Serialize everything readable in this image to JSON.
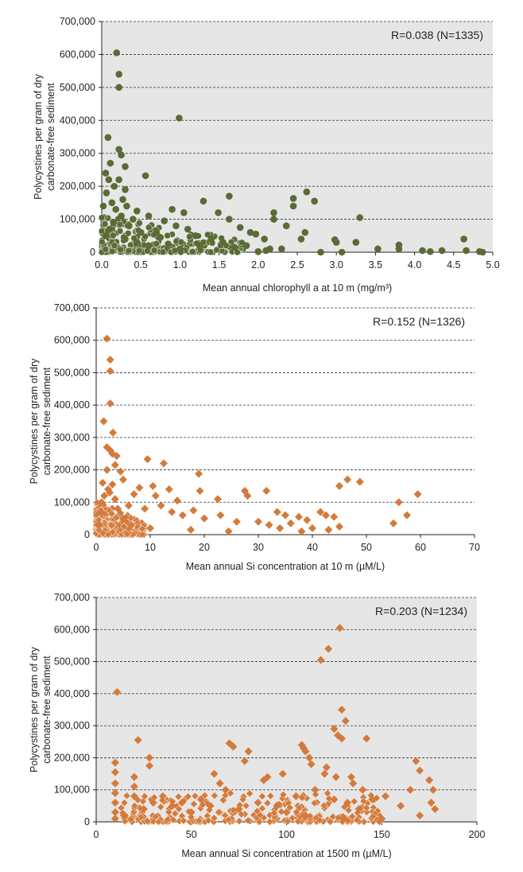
{
  "chart_data": [
    {
      "type": "scatter",
      "annotation": "R=0.038 (N=1335)",
      "ylabel": "Polycystines per gram of dry carbonate-free sediment",
      "xlabel": "Mean annual chlorophyll a at 10 m (mg/m³)",
      "xlim": [
        0,
        5
      ],
      "ylim": [
        0,
        700000
      ],
      "xticks": [
        "0.0",
        "0.5",
        "1.0",
        "1.5",
        "2.0",
        "2.5",
        "3.0",
        "3.5",
        "4.0",
        "4.5",
        "5.0"
      ],
      "xtick_values": [
        0,
        0.5,
        1,
        1.5,
        2,
        2.5,
        3,
        3.5,
        4,
        4.5,
        5
      ],
      "yticks": [
        "0",
        "100,000",
        "200,000",
        "300,000",
        "400,000",
        "500,000",
        "600,000",
        "700,000"
      ],
      "ytick_values": [
        0,
        100000,
        200000,
        300000,
        400000,
        500000,
        600000,
        700000
      ],
      "grid": "horizontal dashed",
      "marker": "circle",
      "color": "#5a6b35",
      "background": "#e6e6e6",
      "points": [
        [
          0.19,
          605000
        ],
        [
          0.22,
          540000
        ],
        [
          0.22,
          500000
        ],
        [
          0.99,
          407000
        ],
        [
          0.08,
          348000
        ],
        [
          0.22,
          312000
        ],
        [
          0.25,
          295000
        ],
        [
          0.3,
          260000
        ],
        [
          0.11,
          270000
        ],
        [
          0.05,
          240000
        ],
        [
          0.09,
          220000
        ],
        [
          0.56,
          232000
        ],
        [
          0.22,
          220000
        ],
        [
          0.16,
          200000
        ],
        [
          0.3,
          190000
        ],
        [
          0.06,
          180000
        ],
        [
          0.27,
          160000
        ],
        [
          0.13,
          150000
        ],
        [
          0.32,
          140000
        ],
        [
          0.45,
          125000
        ],
        [
          0.6,
          110000
        ],
        [
          0.02,
          140000
        ],
        [
          0.18,
          130000
        ],
        [
          0.4,
          100000
        ],
        [
          0.8,
          95000
        ],
        [
          0.9,
          130000
        ],
        [
          1.05,
          120000
        ],
        [
          1.3,
          155000
        ],
        [
          1.49,
          120000
        ],
        [
          1.63,
          170000
        ],
        [
          1.63,
          100000
        ],
        [
          1.77,
          75000
        ],
        [
          1.9,
          60000
        ],
        [
          1.97,
          55000
        ],
        [
          2.08,
          40000
        ],
        [
          2.2,
          120000
        ],
        [
          2.2,
          100000
        ],
        [
          2.36,
          80000
        ],
        [
          2.45,
          163000
        ],
        [
          2.45,
          140000
        ],
        [
          2.62,
          183000
        ],
        [
          2.72,
          155000
        ],
        [
          2.6,
          60000
        ],
        [
          2.55,
          40000
        ],
        [
          2.98,
          38000
        ],
        [
          3.0,
          30000
        ],
        [
          3.07,
          0
        ],
        [
          3.3,
          105000
        ],
        [
          3.25,
          30000
        ],
        [
          3.53,
          10000
        ],
        [
          3.8,
          22000
        ],
        [
          3.8,
          10000
        ],
        [
          4.1,
          5000
        ],
        [
          4.2,
          2000
        ],
        [
          4.35,
          5000
        ],
        [
          4.63,
          40000
        ],
        [
          4.66,
          5000
        ],
        [
          4.83,
          2000
        ],
        [
          4.87,
          0
        ],
        [
          2.0,
          2000
        ],
        [
          2.1,
          5000
        ],
        [
          2.3,
          10000
        ],
        [
          2.8,
          0
        ],
        [
          0.7,
          60000
        ],
        [
          1.2,
          50000
        ],
        [
          1.4,
          40000
        ],
        [
          1.1,
          70000
        ],
        [
          0.95,
          80000
        ],
        [
          0.75,
          45000
        ],
        [
          1.55,
          30000
        ],
        [
          1.85,
          20000
        ],
        [
          2.15,
          10000
        ],
        [
          0.35,
          80000
        ],
        [
          0.5,
          60000
        ],
        [
          0.15,
          90000
        ],
        [
          0.25,
          110000
        ],
        [
          0.1,
          70000
        ],
        [
          0.05,
          50000
        ],
        [
          0.3,
          40000
        ],
        [
          0.45,
          30000
        ],
        [
          0.6,
          20000
        ],
        [
          1.7,
          15000
        ],
        [
          1.0,
          10000
        ],
        [
          0.85,
          25000
        ],
        [
          1.25,
          20000
        ]
      ]
    },
    {
      "type": "scatter",
      "annotation": "R=0.152 (N=1326)",
      "ylabel": "Polycystines per gram of dry carbonate-free sediment",
      "xlabel": "Mean annual Si concentration at 10 m (µM/L)",
      "xlim": [
        0,
        70
      ],
      "ylim": [
        0,
        700000
      ],
      "xticks": [
        "0",
        "10",
        "20",
        "30",
        "40",
        "50",
        "60",
        "70"
      ],
      "xtick_values": [
        0,
        10,
        20,
        30,
        40,
        50,
        60,
        70
      ],
      "yticks": [
        "0",
        "100,000",
        "200,000",
        "300,000",
        "400,000",
        "500,000",
        "600,000",
        "700,000"
      ],
      "ytick_values": [
        0,
        100000,
        200000,
        300000,
        400000,
        500000,
        600000,
        700000
      ],
      "grid": "horizontal dashed",
      "marker": "diamond",
      "color": "#d47a3a",
      "background": "#ffffff",
      "points": [
        [
          2.0,
          605000
        ],
        [
          2.6,
          540000
        ],
        [
          2.6,
          505000
        ],
        [
          2.6,
          405000
        ],
        [
          1.4,
          350000
        ],
        [
          3.1,
          315000
        ],
        [
          2.0,
          270000
        ],
        [
          2.6,
          260000
        ],
        [
          3.0,
          250000
        ],
        [
          3.8,
          243000
        ],
        [
          9.5,
          233000
        ],
        [
          12.5,
          220000
        ],
        [
          3.5,
          215000
        ],
        [
          2.0,
          200000
        ],
        [
          4.5,
          195000
        ],
        [
          19.0,
          188000
        ],
        [
          5.0,
          170000
        ],
        [
          1.2,
          160000
        ],
        [
          3.0,
          155000
        ],
        [
          8.0,
          145000
        ],
        [
          10.5,
          150000
        ],
        [
          13.5,
          140000
        ],
        [
          19.2,
          135000
        ],
        [
          27.5,
          135000
        ],
        [
          31.5,
          135000
        ],
        [
          2.5,
          130000
        ],
        [
          7.0,
          125000
        ],
        [
          11.0,
          120000
        ],
        [
          15.0,
          105000
        ],
        [
          22.5,
          110000
        ],
        [
          28.0,
          120000
        ],
        [
          33.5,
          70000
        ],
        [
          35.0,
          60000
        ],
        [
          37.5,
          55000
        ],
        [
          39.0,
          45000
        ],
        [
          41.5,
          70000
        ],
        [
          42.5,
          60000
        ],
        [
          44.0,
          55000
        ],
        [
          45.0,
          150000
        ],
        [
          46.5,
          170000
        ],
        [
          48.8,
          163000
        ],
        [
          55.0,
          35000
        ],
        [
          56.0,
          100000
        ],
        [
          57.5,
          60000
        ],
        [
          59.5,
          125000
        ],
        [
          6.0,
          90000
        ],
        [
          9.0,
          80000
        ],
        [
          12.0,
          90000
        ],
        [
          14.0,
          70000
        ],
        [
          16.0,
          60000
        ],
        [
          18.0,
          75000
        ],
        [
          20.0,
          50000
        ],
        [
          23.0,
          60000
        ],
        [
          26.0,
          40000
        ],
        [
          30.0,
          40000
        ],
        [
          32.0,
          30000
        ],
        [
          34.0,
          20000
        ],
        [
          36.0,
          35000
        ],
        [
          40.0,
          20000
        ],
        [
          43.0,
          15000
        ],
        [
          45.0,
          25000
        ],
        [
          38.0,
          10000
        ],
        [
          24.5,
          10000
        ],
        [
          17.5,
          15000
        ],
        [
          10.0,
          20000
        ],
        [
          6.5,
          30000
        ],
        [
          0.5,
          30000
        ],
        [
          0.8,
          70000
        ],
        [
          1.0,
          100000
        ],
        [
          1.5,
          120000
        ],
        [
          2.2,
          140000
        ],
        [
          3.5,
          110000
        ],
        [
          4.0,
          80000
        ],
        [
          5.0,
          50000
        ]
      ]
    },
    {
      "type": "scatter",
      "annotation": "R=0.203 (N=1234)",
      "ylabel": "Polycystines per gram of dry carbonate-free sediment",
      "xlabel": "Mean annual Si concentration at 1500 m (µM/L)",
      "xlim": [
        0,
        200
      ],
      "ylim": [
        0,
        700000
      ],
      "xticks": [
        "0",
        "50",
        "100",
        "150",
        "200"
      ],
      "xtick_values": [
        0,
        50,
        100,
        150,
        200
      ],
      "yticks": [
        "0",
        "100,000",
        "200,000",
        "300,000",
        "400,000",
        "500,000",
        "600,000",
        "700,000"
      ],
      "ytick_values": [
        0,
        100000,
        200000,
        300000,
        400000,
        500000,
        600000,
        700000
      ],
      "grid": "horizontal dashed",
      "marker": "diamond",
      "color": "#d47a3a",
      "background": "#e6e6e6",
      "points": [
        [
          128,
          605000
        ],
        [
          122,
          540000
        ],
        [
          118,
          505000
        ],
        [
          11,
          405000
        ],
        [
          129,
          350000
        ],
        [
          131,
          315000
        ],
        [
          125,
          290000
        ],
        [
          127,
          270000
        ],
        [
          129,
          260000
        ],
        [
          142,
          260000
        ],
        [
          22,
          255000
        ],
        [
          70,
          245000
        ],
        [
          72,
          235000
        ],
        [
          28,
          200000
        ],
        [
          28,
          175000
        ],
        [
          10,
          185000
        ],
        [
          10,
          155000
        ],
        [
          10,
          120000
        ],
        [
          10,
          90000
        ],
        [
          10,
          60000
        ],
        [
          10,
          30000
        ],
        [
          10,
          10000
        ],
        [
          20,
          140000
        ],
        [
          20,
          110000
        ],
        [
          20,
          80000
        ],
        [
          45,
          60000
        ],
        [
          55,
          70000
        ],
        [
          65,
          120000
        ],
        [
          68,
          100000
        ],
        [
          78,
          190000
        ],
        [
          80,
          220000
        ],
        [
          90,
          140000
        ],
        [
          98,
          150000
        ],
        [
          108,
          240000
        ],
        [
          109,
          230000
        ],
        [
          110,
          220000
        ],
        [
          112,
          200000
        ],
        [
          113,
          180000
        ],
        [
          120,
          150000
        ],
        [
          121,
          170000
        ],
        [
          126,
          140000
        ],
        [
          134,
          140000
        ],
        [
          135,
          120000
        ],
        [
          140,
          100000
        ],
        [
          168,
          190000
        ],
        [
          170,
          160000
        ],
        [
          175,
          130000
        ],
        [
          177,
          100000
        ],
        [
          176,
          60000
        ],
        [
          165,
          100000
        ],
        [
          160,
          50000
        ],
        [
          152,
          80000
        ],
        [
          145,
          70000
        ],
        [
          138,
          40000
        ],
        [
          132,
          60000
        ],
        [
          125,
          70000
        ],
        [
          115,
          100000
        ],
        [
          105,
          80000
        ],
        [
          95,
          50000
        ],
        [
          85,
          60000
        ],
        [
          75,
          40000
        ],
        [
          60,
          50000
        ],
        [
          50,
          30000
        ],
        [
          40,
          50000
        ],
        [
          35,
          80000
        ],
        [
          30,
          60000
        ],
        [
          25,
          40000
        ],
        [
          15,
          20000
        ],
        [
          100,
          30000
        ],
        [
          110,
          20000
        ],
        [
          130,
          10000
        ],
        [
          150,
          10000
        ],
        [
          170,
          20000
        ],
        [
          178,
          40000
        ],
        [
          62,
          150000
        ],
        [
          88,
          130000
        ]
      ]
    }
  ]
}
